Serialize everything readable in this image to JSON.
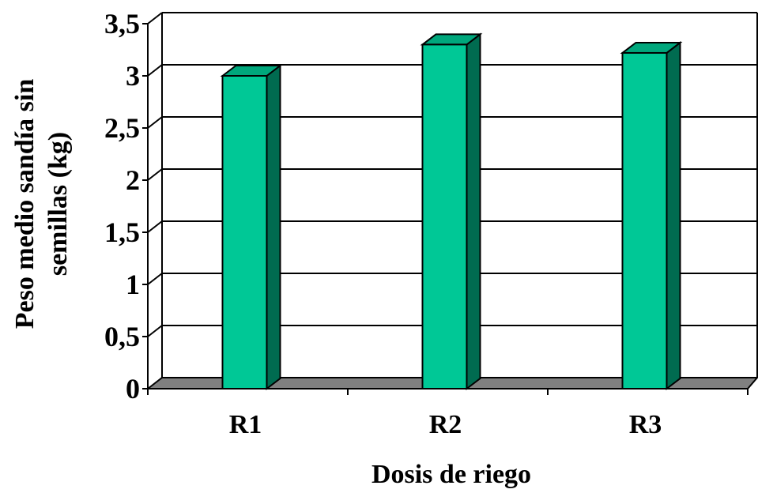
{
  "chart_data": {
    "type": "bar",
    "categories": [
      "R1",
      "R2",
      "R3"
    ],
    "values": [
      3.0,
      3.3,
      3.22
    ],
    "xlabel": "Dosis de riego",
    "ylabel_lines": [
      "Peso medio sandía sin",
      "semillas (kg)"
    ],
    "ylim": [
      0,
      3.5
    ],
    "yticks": [
      0,
      0.5,
      1,
      1.5,
      2,
      2.5,
      3,
      3.5
    ],
    "ytick_labels": [
      "0",
      "0,5",
      "1",
      "1,5",
      "2",
      "2,5",
      "3",
      "3,5"
    ],
    "grid": true,
    "style": "3d-column",
    "colors": {
      "bar_front": "#00c896",
      "bar_top": "#00a77c",
      "bar_side": "#006b50",
      "floor": "#808080",
      "grid": "#000000"
    }
  }
}
